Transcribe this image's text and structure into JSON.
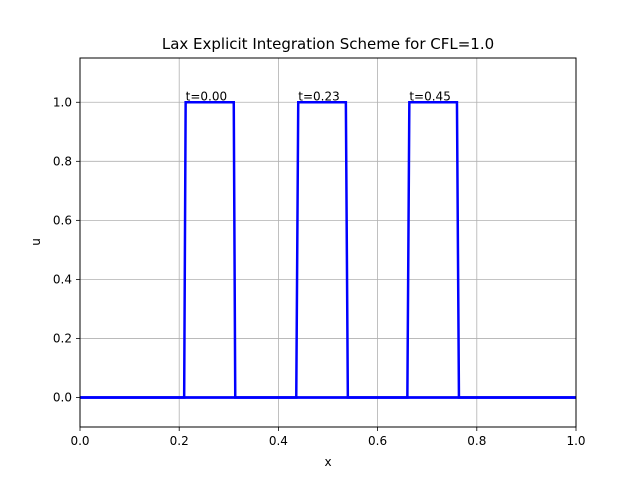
{
  "chart_data": {
    "type": "line",
    "title": "Lax Explicit Integration Scheme for  CFL=1.0",
    "xlabel": "x",
    "ylabel": "u",
    "xlim": [
      0.0,
      1.0
    ],
    "ylim": [
      -0.1,
      1.15
    ],
    "xticks": [
      0.0,
      0.2,
      0.4,
      0.6,
      0.8,
      1.0
    ],
    "xtick_labels": [
      "0.0",
      "0.2",
      "0.4",
      "0.6",
      "0.8",
      "1.0"
    ],
    "yticks": [
      0.0,
      0.2,
      0.4,
      0.6,
      0.8,
      1.0
    ],
    "ytick_labels": [
      "0.0",
      "0.2",
      "0.4",
      "0.6",
      "0.8",
      "1.0"
    ],
    "grid": true,
    "line_color": "#0000ff",
    "series": [
      {
        "label": "t=0.00",
        "x": [
          0.0,
          0.21,
          0.213,
          0.31,
          0.313,
          1.0
        ],
        "y": [
          0.0,
          0.0,
          1.0,
          1.0,
          0.0,
          0.0
        ]
      },
      {
        "label": "t=0.23",
        "x": [
          0.0,
          0.436,
          0.44,
          0.536,
          0.54,
          1.0
        ],
        "y": [
          0.0,
          0.0,
          1.0,
          1.0,
          0.0,
          0.0
        ]
      },
      {
        "label": "t=0.45",
        "x": [
          0.0,
          0.66,
          0.664,
          0.76,
          0.764,
          1.0
        ],
        "y": [
          0.0,
          0.0,
          1.0,
          1.0,
          0.0,
          0.0
        ]
      }
    ],
    "annotations": [
      {
        "text": "t=0.00",
        "x": 0.213,
        "y": 1.0
      },
      {
        "text": "t=0.23",
        "x": 0.44,
        "y": 1.0
      },
      {
        "text": "t=0.45",
        "x": 0.664,
        "y": 1.0
      }
    ]
  }
}
